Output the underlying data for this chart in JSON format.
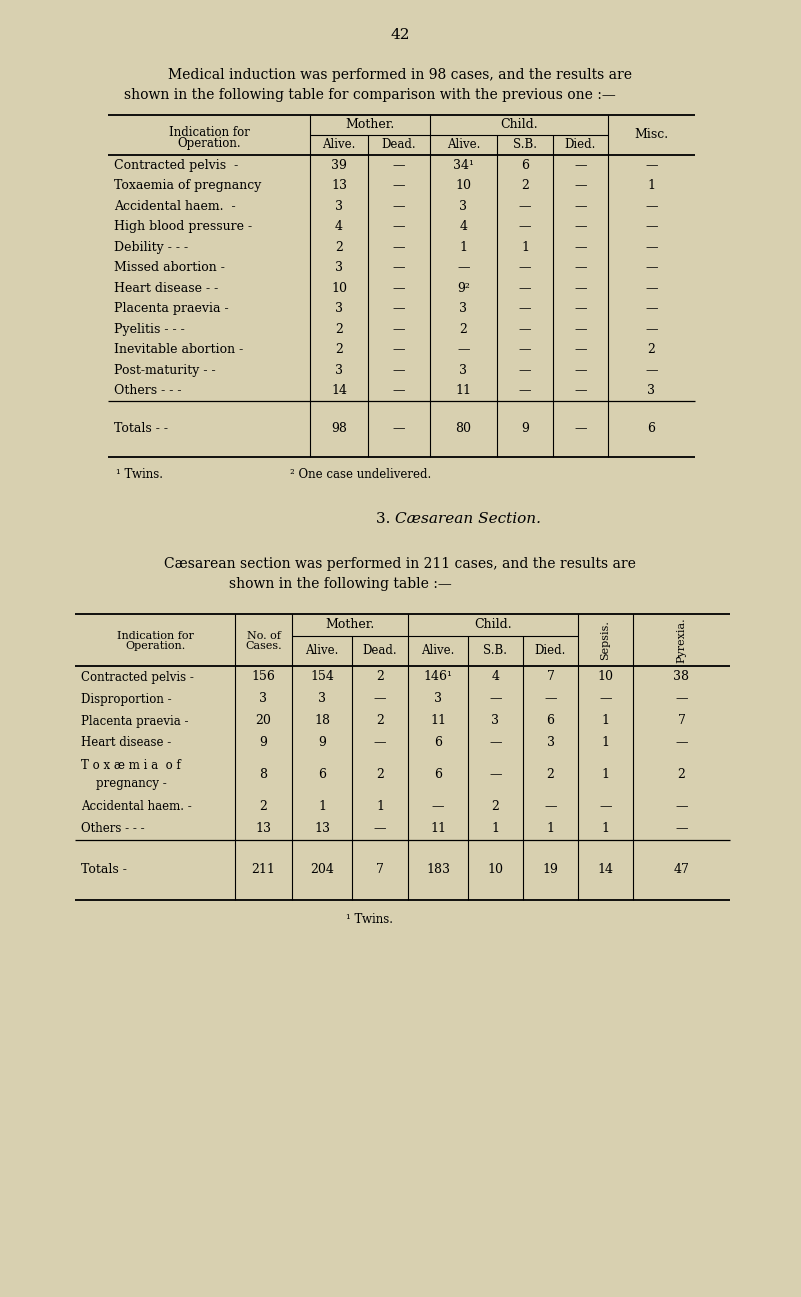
{
  "bg_color": "#d8d0b0",
  "page_number": "42",
  "intro_text1": "Medical induction was performed in 98 cases, and the results are",
  "intro_text2": "shown in the following table for comparison with the previous one :—",
  "table1": {
    "rows": [
      {
        "label": "Contracted pelvis  -",
        "alive_m": "39",
        "dead_m": "—",
        "alive_c": "34¹",
        "sb_c": "6",
        "died_c": "—",
        "misc": "—"
      },
      {
        "label": "Toxaemia of pregnancy",
        "alive_m": "13",
        "dead_m": "—",
        "alive_c": "10",
        "sb_c": "2",
        "died_c": "—",
        "misc": "1"
      },
      {
        "label": "Accidental haem.  -",
        "alive_m": "3",
        "dead_m": "—",
        "alive_c": "3",
        "sb_c": "—",
        "died_c": "—",
        "misc": "—"
      },
      {
        "label": "High blood pressure -",
        "alive_m": "4",
        "dead_m": "—",
        "alive_c": "4",
        "sb_c": "—",
        "died_c": "—",
        "misc": "—"
      },
      {
        "label": "Debility - - -",
        "alive_m": "2",
        "dead_m": "—",
        "alive_c": "1",
        "sb_c": "1",
        "died_c": "—",
        "misc": "—"
      },
      {
        "label": "Missed abortion -",
        "alive_m": "3",
        "dead_m": "—",
        "alive_c": "—",
        "sb_c": "—",
        "died_c": "—",
        "misc": "—"
      },
      {
        "label": "Heart disease - -",
        "alive_m": "10",
        "dead_m": "—",
        "alive_c": "9²",
        "sb_c": "—",
        "died_c": "—",
        "misc": "—"
      },
      {
        "label": "Placenta praevia -",
        "alive_m": "3",
        "dead_m": "—",
        "alive_c": "3",
        "sb_c": "—",
        "died_c": "—",
        "misc": "—"
      },
      {
        "label": "Pyelitis - - -",
        "alive_m": "2",
        "dead_m": "—",
        "alive_c": "2",
        "sb_c": "—",
        "died_c": "—",
        "misc": "—"
      },
      {
        "label": "Inevitable abortion -",
        "alive_m": "2",
        "dead_m": "—",
        "alive_c": "—",
        "sb_c": "—",
        "died_c": "—",
        "misc": "2"
      },
      {
        "label": "Post-maturity - -",
        "alive_m": "3",
        "dead_m": "—",
        "alive_c": "3",
        "sb_c": "—",
        "died_c": "—",
        "misc": "—"
      },
      {
        "label": "Others - - -",
        "alive_m": "14",
        "dead_m": "—",
        "alive_c": "11",
        "sb_c": "—",
        "died_c": "—",
        "misc": "3"
      }
    ],
    "totals": {
      "label": "Totals - -",
      "alive_m": "98",
      "dead_m": "—",
      "alive_c": "80",
      "sb_c": "9",
      "died_c": "—",
      "misc": "6"
    },
    "footnote1": "¹ Twins.",
    "footnote2": "² One case undelivered."
  },
  "section_num": "3. ",
  "section_italic": "Cæsarean Section.",
  "intro2_text1": "Cæsarean section was performed in 211 cases, and the results are",
  "intro2_text2": "shown in the following table :—",
  "table2": {
    "rows": [
      {
        "label": "Contracted pelvis -",
        "no": "156",
        "alive_m": "154",
        "dead_m": "2",
        "alive_c": "146¹",
        "sb_c": "4",
        "died_c": "7",
        "sepsis": "10",
        "pyrexia": "38"
      },
      {
        "label": "Disproportion -",
        "no": "3",
        "alive_m": "3",
        "dead_m": "—",
        "alive_c": "3",
        "sb_c": "—",
        "died_c": "—",
        "sepsis": "—",
        "pyrexia": "—"
      },
      {
        "label": "Placenta praevia -",
        "no": "20",
        "alive_m": "18",
        "dead_m": "2",
        "alive_c": "11",
        "sb_c": "3",
        "died_c": "6",
        "sepsis": "1",
        "pyrexia": "7"
      },
      {
        "label": "Heart disease -",
        "no": "9",
        "alive_m": "9",
        "dead_m": "—",
        "alive_c": "6",
        "sb_c": "—",
        "died_c": "　",
        "sepsis": "1",
        "pyrexia": "—",
        "died_c_val": "3"
      },
      {
        "label": "T o x æ m i a  o f",
        "label2": "    pregnancy -",
        "no": "8",
        "alive_m": "6",
        "dead_m": "2",
        "alive_c": "6",
        "sb_c": "—",
        "died_c": "2",
        "sepsis": "1",
        "pyrexia": "2"
      },
      {
        "label": "Accidental haem. -",
        "no": "2",
        "alive_m": "1",
        "dead_m": "1",
        "alive_c": "—",
        "sb_c": "2",
        "died_c": "—",
        "sepsis": "—",
        "pyrexia": "—"
      },
      {
        "label": "Others - - -",
        "no": "13",
        "alive_m": "13",
        "dead_m": "—",
        "alive_c": "11",
        "sb_c": "1",
        "died_c": "1",
        "sepsis": "1",
        "pyrexia": "—"
      }
    ],
    "totals": {
      "label": "Totals -",
      "no": "211",
      "alive_m": "204",
      "dead_m": "7",
      "alive_c": "183",
      "sb_c": "10",
      "died_c": "19",
      "sepsis": "14",
      "pyrexia": "47"
    },
    "footnote1": "¹ Twins."
  }
}
